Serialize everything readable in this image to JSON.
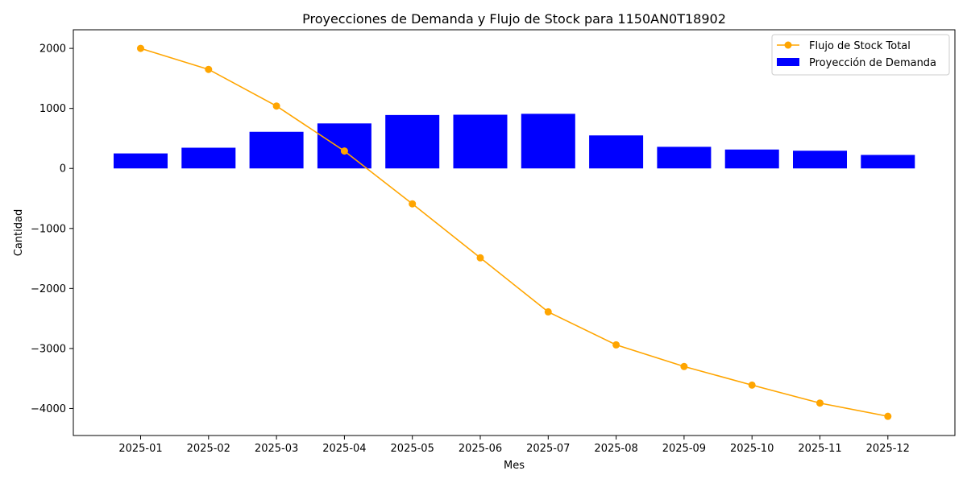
{
  "chart_data": {
    "type": "bar",
    "title": "Proyecciones de Demanda y Flujo de Stock para 1150AN0T18902",
    "xlabel": "Mes",
    "ylabel": "Cantidad",
    "categories": [
      "2025-01",
      "2025-02",
      "2025-03",
      "2025-04",
      "2025-05",
      "2025-06",
      "2025-07",
      "2025-08",
      "2025-09",
      "2025-10",
      "2025-11",
      "2025-12"
    ],
    "ylim": [
      -4450,
      2310
    ],
    "yticks": [
      -4000,
      -3000,
      -2000,
      -1000,
      0,
      1000,
      2000
    ],
    "ytick_labels": [
      "−4000",
      "−3000",
      "−2000",
      "−1000",
      "0",
      "1000",
      "2000"
    ],
    "grid": false,
    "legend_position": "top-right",
    "series": [
      {
        "name": "Flujo de Stock Total",
        "type": "line",
        "color": "#ffa500",
        "marker": "circle",
        "values": [
          2000,
          1650,
          1040,
          290,
          -590,
          -1490,
          -2390,
          -2940,
          -3300,
          -3610,
          -3910,
          -4130
        ]
      },
      {
        "name": "Proyección de Demanda",
        "type": "bar",
        "color": "#0000ff",
        "values": [
          250,
          345,
          610,
          750,
          890,
          895,
          910,
          550,
          360,
          315,
          295,
          225
        ]
      }
    ]
  }
}
